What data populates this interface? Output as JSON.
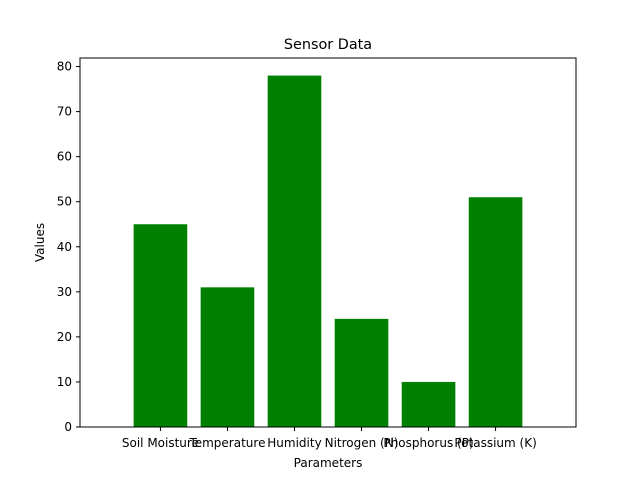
{
  "chart_data": {
    "type": "bar",
    "title": "Sensor Data",
    "xlabel": "Parameters",
    "ylabel": "Values",
    "categories": [
      "Soil Moisture",
      "Temperature",
      "Humidity",
      "Nitrogen (N)",
      "Phosphorus (P)",
      "Potassium (K)"
    ],
    "values": [
      45,
      31,
      78,
      24,
      10,
      51
    ],
    "ylim": [
      0,
      81.9
    ],
    "yticks": [
      0,
      10,
      20,
      30,
      40,
      50,
      60,
      70,
      80
    ],
    "bar_color": "#008000",
    "grid": false,
    "legend": "none"
  }
}
